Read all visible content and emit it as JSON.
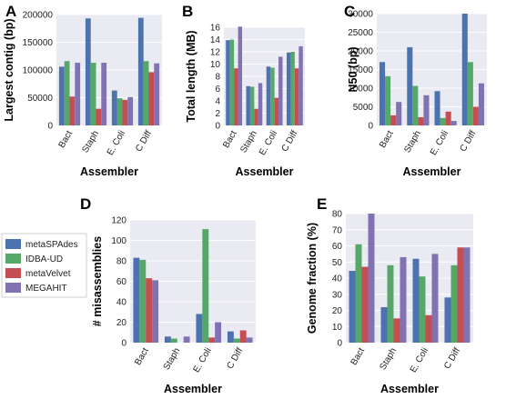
{
  "legend": {
    "entries": [
      "metaSPAdes",
      "IDBA-UD",
      "metaVelvet",
      "MEGAHIT"
    ]
  },
  "colors": {
    "series": [
      "#4c72b0",
      "#55a868",
      "#c44e52",
      "#8172b2"
    ],
    "plot_bg": "#eaeaf2",
    "grid": "#ffffff"
  },
  "chart_data": [
    {
      "panel": "A",
      "type": "bar",
      "categories": [
        "Bact",
        "Staph",
        "E. Coli",
        "C Diff"
      ],
      "series": [
        {
          "name": "metaSPAdes",
          "values": [
            106000,
            193000,
            63000,
            194000
          ]
        },
        {
          "name": "IDBA-UD",
          "values": [
            116000,
            113000,
            49000,
            116000
          ]
        },
        {
          "name": "metaVelvet",
          "values": [
            52000,
            30000,
            46000,
            96000
          ]
        },
        {
          "name": "MEGAHIT",
          "values": [
            113000,
            113000,
            51000,
            112000
          ]
        }
      ],
      "xlabel": "Assembler",
      "ylabel": "Largest contig (bp)",
      "ylim": [
        0,
        200000
      ],
      "yticks": [
        0,
        50000,
        100000,
        150000,
        200000
      ],
      "grid": true
    },
    {
      "panel": "B",
      "type": "bar",
      "categories": [
        "Bact",
        "Staph",
        "E. Coli",
        "C Diff"
      ],
      "series": [
        {
          "name": "metaSPAdes",
          "values": [
            13.9,
            6.4,
            9.6,
            11.9
          ]
        },
        {
          "name": "IDBA-UD",
          "values": [
            14.0,
            6.3,
            9.4,
            12.0
          ]
        },
        {
          "name": "metaVelvet",
          "values": [
            9.3,
            2.7,
            4.5,
            9.3
          ]
        },
        {
          "name": "MEGAHIT",
          "values": [
            16.1,
            6.9,
            11.2,
            12.9
          ]
        }
      ],
      "xlabel": "Assembler",
      "ylabel": "Total length (MB)",
      "ylim": [
        0,
        16
      ],
      "yticks": [
        0,
        2,
        4,
        6,
        8,
        10,
        12,
        14,
        16
      ],
      "grid": true
    },
    {
      "panel": "C",
      "type": "bar",
      "categories": [
        "Bact",
        "Staph",
        "E. Coli",
        "C Diff"
      ],
      "series": [
        {
          "name": "metaSPAdes",
          "values": [
            17000,
            21000,
            9200,
            30000
          ]
        },
        {
          "name": "IDBA-UD",
          "values": [
            13200,
            10600,
            2000,
            17000
          ]
        },
        {
          "name": "metaVelvet",
          "values": [
            2700,
            2200,
            3700,
            5000
          ]
        },
        {
          "name": "MEGAHIT",
          "values": [
            6300,
            8100,
            1200,
            11300
          ]
        }
      ],
      "xlabel": "Assembler",
      "ylabel": "N50 (bp)",
      "ylim": [
        0,
        30000
      ],
      "yticks": [
        0,
        5000,
        10000,
        15000,
        20000,
        25000,
        30000
      ],
      "grid": true
    },
    {
      "panel": "D",
      "type": "bar",
      "categories": [
        "Bact",
        "Staph",
        "E. Coli",
        "C Diff"
      ],
      "series": [
        {
          "name": "metaSPAdes",
          "values": [
            83,
            6,
            28,
            11
          ]
        },
        {
          "name": "IDBA-UD",
          "values": [
            81,
            4,
            111,
            4
          ]
        },
        {
          "name": "metaVelvet",
          "values": [
            63,
            0,
            5,
            12
          ]
        },
        {
          "name": "MEGAHIT",
          "values": [
            61,
            6,
            20,
            5
          ]
        }
      ],
      "xlabel": "Assembler",
      "ylabel": "# misassemblies",
      "ylim": [
        0,
        120
      ],
      "yticks": [
        0,
        20,
        40,
        60,
        80,
        100,
        120
      ],
      "grid": true
    },
    {
      "panel": "E",
      "type": "bar",
      "categories": [
        "Bact",
        "Staph",
        "E. Coli",
        "C Diff"
      ],
      "series": [
        {
          "name": "metaSPAdes",
          "values": [
            44.5,
            22,
            52,
            28
          ]
        },
        {
          "name": "IDBA-UD",
          "values": [
            61,
            48,
            41,
            48
          ]
        },
        {
          "name": "metaVelvet",
          "values": [
            47,
            15,
            17,
            59
          ]
        },
        {
          "name": "MEGAHIT",
          "values": [
            80,
            53,
            55,
            59
          ]
        }
      ],
      "xlabel": "Assembler",
      "ylabel": "Genome fraction (%)",
      "ylim": [
        0,
        80
      ],
      "yticks": [
        0,
        10,
        20,
        30,
        40,
        50,
        60,
        70,
        80
      ],
      "grid": true
    }
  ]
}
